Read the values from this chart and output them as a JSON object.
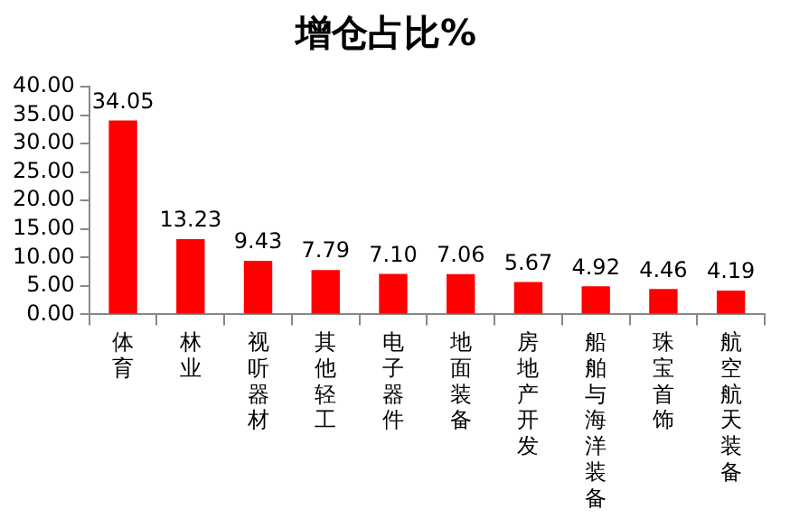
{
  "chart_data": {
    "type": "bar",
    "title": "增仓占比%",
    "categories": [
      "体育",
      "林业",
      "视听器材",
      "其他轻工",
      "电子器件",
      "地面装备",
      "房地产开发",
      "船舶与海洋装备",
      "珠宝首饰",
      "航空航天装备"
    ],
    "values": [
      34.05,
      13.23,
      9.43,
      7.79,
      7.1,
      7.06,
      5.67,
      4.92,
      4.46,
      4.19
    ],
    "value_labels": [
      "34.05",
      "13.23",
      "9.43",
      "7.79",
      "7.10",
      "7.06",
      "5.67",
      "4.92",
      "4.46",
      "4.19"
    ],
    "color": "#ff0000",
    "ylim": [
      0,
      40
    ],
    "yticks": [
      {
        "value": 0,
        "label": "0.00"
      },
      {
        "value": 5,
        "label": "5.00"
      },
      {
        "value": 10,
        "label": "10.00"
      },
      {
        "value": 15,
        "label": "15.00"
      },
      {
        "value": 20,
        "label": "20.00"
      },
      {
        "value": 25,
        "label": "25.00"
      },
      {
        "value": 30,
        "label": "30.00"
      },
      {
        "value": 35,
        "label": "35.00"
      },
      {
        "value": 40,
        "label": "40.00"
      }
    ],
    "grid": false,
    "legend": false
  }
}
